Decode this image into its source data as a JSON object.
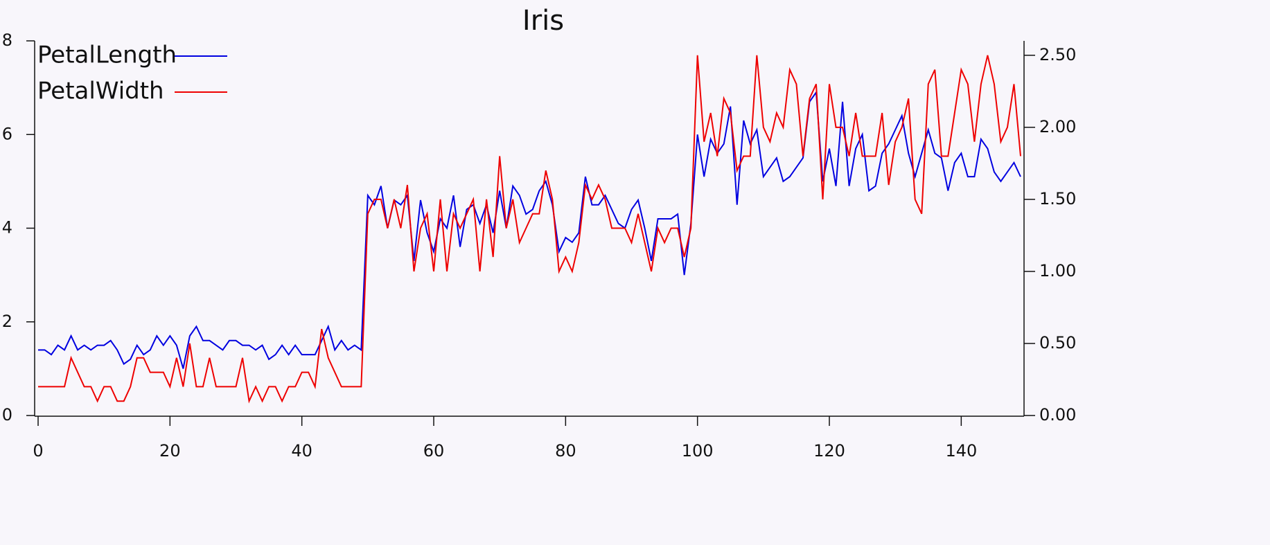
{
  "chart_data": {
    "type": "line",
    "title": "Iris",
    "x": [
      0,
      1,
      2,
      3,
      4,
      5,
      6,
      7,
      8,
      9,
      10,
      11,
      12,
      13,
      14,
      15,
      16,
      17,
      18,
      19,
      20,
      21,
      22,
      23,
      24,
      25,
      26,
      27,
      28,
      29,
      30,
      31,
      32,
      33,
      34,
      35,
      36,
      37,
      38,
      39,
      40,
      41,
      42,
      43,
      44,
      45,
      46,
      47,
      48,
      49,
      50,
      51,
      52,
      53,
      54,
      55,
      56,
      57,
      58,
      59,
      60,
      61,
      62,
      63,
      64,
      65,
      66,
      67,
      68,
      69,
      70,
      71,
      72,
      73,
      74,
      75,
      76,
      77,
      78,
      79,
      80,
      81,
      82,
      83,
      84,
      85,
      86,
      87,
      88,
      89,
      90,
      91,
      92,
      93,
      94,
      95,
      96,
      97,
      98,
      99,
      100,
      101,
      102,
      103,
      104,
      105,
      106,
      107,
      108,
      109,
      110,
      111,
      112,
      113,
      114,
      115,
      116,
      117,
      118,
      119,
      120,
      121,
      122,
      123,
      124,
      125,
      126,
      127,
      128,
      129,
      130,
      131,
      132,
      133,
      134,
      135,
      136,
      137,
      138,
      139,
      140,
      141,
      142,
      143,
      144,
      145,
      146,
      147,
      148,
      149
    ],
    "series": [
      {
        "name": "PetalLength",
        "color": "#0000e0",
        "values": [
          1.4,
          1.4,
          1.3,
          1.5,
          1.4,
          1.7,
          1.4,
          1.5,
          1.4,
          1.5,
          1.5,
          1.6,
          1.4,
          1.1,
          1.2,
          1.5,
          1.3,
          1.4,
          1.7,
          1.5,
          1.7,
          1.5,
          1.0,
          1.7,
          1.9,
          1.6,
          1.6,
          1.5,
          1.4,
          1.6,
          1.6,
          1.5,
          1.5,
          1.4,
          1.5,
          1.2,
          1.3,
          1.5,
          1.3,
          1.5,
          1.3,
          1.3,
          1.3,
          1.6,
          1.9,
          1.4,
          1.6,
          1.4,
          1.5,
          1.4,
          4.7,
          4.5,
          4.9,
          4.0,
          4.6,
          4.5,
          4.7,
          3.3,
          4.6,
          3.9,
          3.5,
          4.2,
          4.0,
          4.7,
          3.6,
          4.4,
          4.5,
          4.1,
          4.5,
          3.9,
          4.8,
          4.0,
          4.9,
          4.7,
          4.3,
          4.4,
          4.8,
          5.0,
          4.5,
          3.5,
          3.8,
          3.7,
          3.9,
          5.1,
          4.5,
          4.5,
          4.7,
          4.4,
          4.1,
          4.0,
          4.4,
          4.6,
          4.0,
          3.3,
          4.2,
          4.2,
          4.2,
          4.3,
          3.0,
          4.1,
          6.0,
          5.1,
          5.9,
          5.6,
          5.8,
          6.6,
          4.5,
          6.3,
          5.8,
          6.1,
          5.1,
          5.3,
          5.5,
          5.0,
          5.1,
          5.3,
          5.5,
          6.7,
          6.9,
          5.0,
          5.7,
          4.9,
          6.7,
          4.9,
          5.7,
          6.0,
          4.8,
          4.9,
          5.6,
          5.8,
          6.1,
          6.4,
          5.6,
          5.1,
          5.6,
          6.1,
          5.6,
          5.5,
          4.8,
          5.4,
          5.6,
          5.1,
          5.1,
          5.9,
          5.7,
          5.2,
          5.0,
          5.2,
          5.4,
          5.1
        ]
      },
      {
        "name": "PetalWidth",
        "color": "#ee0000",
        "axis": "y2",
        "values": [
          0.2,
          0.2,
          0.2,
          0.2,
          0.2,
          0.4,
          0.3,
          0.2,
          0.2,
          0.1,
          0.2,
          0.2,
          0.1,
          0.1,
          0.2,
          0.4,
          0.4,
          0.3,
          0.3,
          0.3,
          0.2,
          0.4,
          0.2,
          0.5,
          0.2,
          0.2,
          0.4,
          0.2,
          0.2,
          0.2,
          0.2,
          0.4,
          0.1,
          0.2,
          0.1,
          0.2,
          0.2,
          0.1,
          0.2,
          0.2,
          0.3,
          0.3,
          0.2,
          0.6,
          0.4,
          0.3,
          0.2,
          0.2,
          0.2,
          0.2,
          1.4,
          1.5,
          1.5,
          1.3,
          1.5,
          1.3,
          1.6,
          1.0,
          1.3,
          1.4,
          1.0,
          1.5,
          1.0,
          1.4,
          1.3,
          1.4,
          1.5,
          1.0,
          1.5,
          1.1,
          1.8,
          1.3,
          1.5,
          1.2,
          1.3,
          1.4,
          1.4,
          1.7,
          1.5,
          1.0,
          1.1,
          1.0,
          1.2,
          1.6,
          1.5,
          1.6,
          1.5,
          1.3,
          1.3,
          1.3,
          1.2,
          1.4,
          1.2,
          1.0,
          1.3,
          1.2,
          1.3,
          1.3,
          1.1,
          1.3,
          2.5,
          1.9,
          2.1,
          1.8,
          2.2,
          2.1,
          1.7,
          1.8,
          1.8,
          2.5,
          2.0,
          1.9,
          2.1,
          2.0,
          2.4,
          2.3,
          1.8,
          2.2,
          2.3,
          1.5,
          2.3,
          2.0,
          2.0,
          1.8,
          2.1,
          1.8,
          1.8,
          1.8,
          2.1,
          1.6,
          1.9,
          2.0,
          2.2,
          1.5,
          1.4,
          2.3,
          2.4,
          1.8,
          1.8,
          2.1,
          2.4,
          2.3,
          1.9,
          2.3,
          2.5,
          2.3,
          1.9,
          2.0,
          2.3,
          1.8
        ]
      }
    ],
    "xlim": [
      0,
      149
    ],
    "xticks": [
      0,
      20,
      40,
      60,
      80,
      100,
      120,
      140
    ],
    "ylim": [
      0,
      8
    ],
    "yticks": [
      0,
      2,
      4,
      6,
      8
    ],
    "y2lim": [
      0,
      2.6
    ],
    "y2ticks": [
      {
        "value": 0,
        "label": "0.00"
      },
      {
        "value": 0.5,
        "label": "0.50"
      },
      {
        "value": 1,
        "label": "1.00"
      },
      {
        "value": 1.5,
        "label": "1.50"
      },
      {
        "value": 2,
        "label": "2.00"
      },
      {
        "value": 2.5,
        "label": "2.50"
      }
    ],
    "legend": "upper-left"
  }
}
